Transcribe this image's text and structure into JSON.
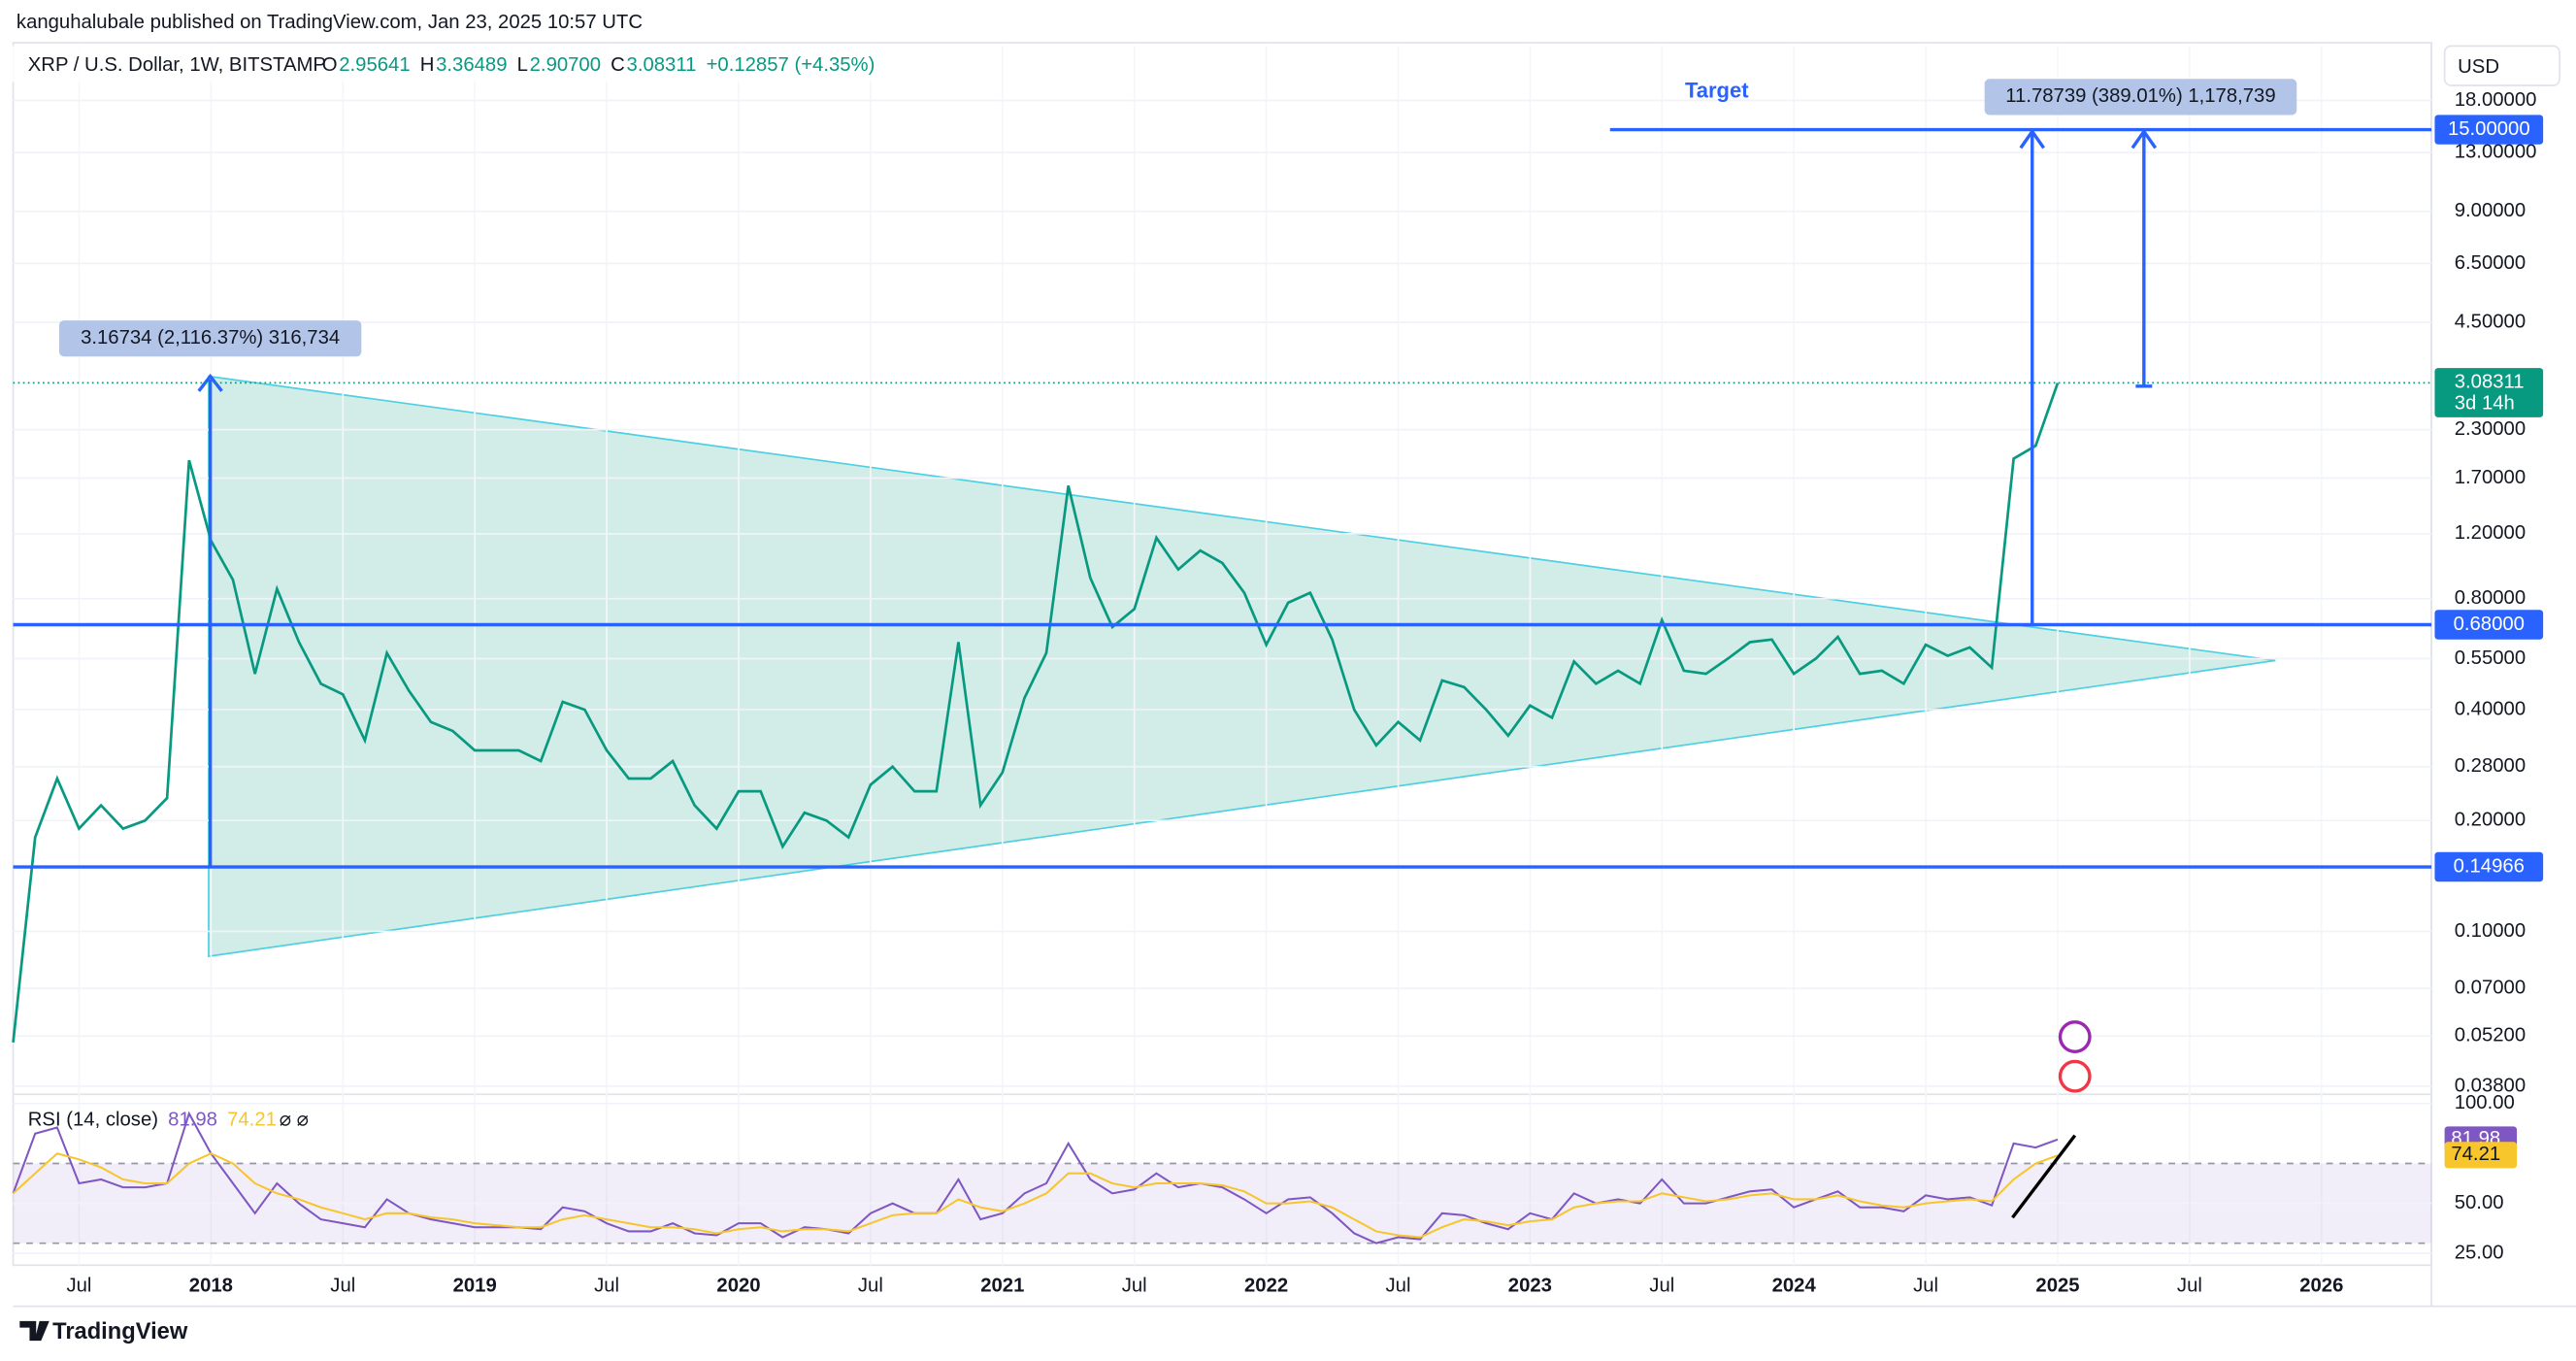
{
  "header": {
    "published": "kanguhalubale published on TradingView.com, Jan 23, 2025 10:57 UTC",
    "ohlc": [
      {
        "key": "O",
        "value": "2.95641"
      },
      {
        "key": "H",
        "value": "3.36489"
      },
      {
        "key": "L",
        "value": "2.90700"
      },
      {
        "key": "C",
        "value": "3.08311"
      }
    ],
    "change": "+0.12857 (+4.35%)",
    "currency": "USD"
  },
  "chart_data": [
    {
      "type": "line",
      "title": "XRP / U.S. Dollar, 1W, BITSTAMP",
      "log_scale": true,
      "x": [
        "2017-04",
        "2017-05",
        "2017-06",
        "2017-07",
        "2017-08",
        "2017-09",
        "2017-10",
        "2017-11",
        "2017-12",
        "2018-01",
        "2018-02",
        "2018-03",
        "2018-04",
        "2018-05",
        "2018-06",
        "2018-07",
        "2018-08",
        "2018-09",
        "2018-10",
        "2018-11",
        "2018-12",
        "2019-01",
        "2019-02",
        "2019-03",
        "2019-04",
        "2019-05",
        "2019-06",
        "2019-07",
        "2019-08",
        "2019-09",
        "2019-10",
        "2019-11",
        "2019-12",
        "2020-01",
        "2020-02",
        "2020-03",
        "2020-04",
        "2020-05",
        "2020-06",
        "2020-07",
        "2020-08",
        "2020-09",
        "2020-10",
        "2020-11",
        "2020-12",
        "2021-01",
        "2021-02",
        "2021-03",
        "2021-04",
        "2021-05",
        "2021-06",
        "2021-07",
        "2021-08",
        "2021-09",
        "2021-10",
        "2021-11",
        "2021-12",
        "2022-01",
        "2022-02",
        "2022-03",
        "2022-04",
        "2022-05",
        "2022-06",
        "2022-07",
        "2022-08",
        "2022-09",
        "2022-10",
        "2022-11",
        "2022-12",
        "2023-01",
        "2023-02",
        "2023-03",
        "2023-04",
        "2023-05",
        "2023-06",
        "2023-07",
        "2023-08",
        "2023-09",
        "2023-10",
        "2023-11",
        "2023-12",
        "2024-01",
        "2024-02",
        "2024-03",
        "2024-04",
        "2024-05",
        "2024-06",
        "2024-07",
        "2024-08",
        "2024-09",
        "2024-10",
        "2024-11",
        "2024-12",
        "2025-01"
      ],
      "series": [
        {
          "color": "#089981",
          "values": [
            0.05,
            0.18,
            0.26,
            0.19,
            0.22,
            0.19,
            0.2,
            0.23,
            1.9,
            1.15,
            0.9,
            0.5,
            0.85,
            0.61,
            0.47,
            0.44,
            0.33,
            0.57,
            0.45,
            0.37,
            0.35,
            0.31,
            0.31,
            0.31,
            0.29,
            0.42,
            0.4,
            0.31,
            0.26,
            0.26,
            0.29,
            0.22,
            0.19,
            0.24,
            0.24,
            0.17,
            0.21,
            0.2,
            0.18,
            0.25,
            0.28,
            0.24,
            0.24,
            0.61,
            0.22,
            0.27,
            0.43,
            0.57,
            1.62,
            0.91,
            0.67,
            0.75,
            1.17,
            0.96,
            1.08,
            1.0,
            0.83,
            0.6,
            0.78,
            0.83,
            0.62,
            0.4,
            0.32,
            0.37,
            0.33,
            0.48,
            0.46,
            0.4,
            0.34,
            0.41,
            0.38,
            0.54,
            0.47,
            0.51,
            0.47,
            0.7,
            0.51,
            0.5,
            0.55,
            0.61,
            0.62,
            0.5,
            0.55,
            0.63,
            0.5,
            0.51,
            0.47,
            0.6,
            0.56,
            0.59,
            0.52,
            1.92,
            2.08,
            3.08
          ]
        }
      ],
      "xlim": [
        "2017-04",
        "2026-06"
      ],
      "xticks": [
        {
          "value": "2017-07",
          "label": "Jul"
        },
        {
          "value": "2018-01",
          "label": "2018"
        },
        {
          "value": "2018-07",
          "label": "Jul"
        },
        {
          "value": "2019-01",
          "label": "2019"
        },
        {
          "value": "2019-07",
          "label": "Jul"
        },
        {
          "value": "2020-01",
          "label": "2020"
        },
        {
          "value": "2020-07",
          "label": "Jul"
        },
        {
          "value": "2021-01",
          "label": "2021"
        },
        {
          "value": "2021-07",
          "label": "Jul"
        },
        {
          "value": "2022-01",
          "label": "2022"
        },
        {
          "value": "2022-07",
          "label": "Jul"
        },
        {
          "value": "2023-01",
          "label": "2023"
        },
        {
          "value": "2023-07",
          "label": "Jul"
        },
        {
          "value": "2024-01",
          "label": "2024"
        },
        {
          "value": "2024-07",
          "label": "Jul"
        },
        {
          "value": "2025-01",
          "label": "2025"
        },
        {
          "value": "2025-07",
          "label": "Jul"
        },
        {
          "value": "2026-01",
          "label": "2026"
        }
      ],
      "ylim": [
        0.0365,
        25.3
      ],
      "yticks": [
        {
          "value": 18,
          "label": "18.00000"
        },
        {
          "value": 13,
          "label": "13.00000"
        },
        {
          "value": 9,
          "label": "9.00000"
        },
        {
          "value": 6.5,
          "label": "6.50000"
        },
        {
          "value": 4.5,
          "label": "4.50000"
        },
        {
          "value": 2.3,
          "label": "2.30000"
        },
        {
          "value": 1.7,
          "label": "1.70000"
        },
        {
          "value": 1.2,
          "label": "1.20000"
        },
        {
          "value": 0.8,
          "label": "0.80000"
        },
        {
          "value": 0.55,
          "label": "0.55000"
        },
        {
          "value": 0.4,
          "label": "0.40000"
        },
        {
          "value": 0.28,
          "label": "0.28000"
        },
        {
          "value": 0.2,
          "label": "0.20000"
        },
        {
          "value": 0.1,
          "label": "0.10000"
        },
        {
          "value": 0.07,
          "label": "0.07000"
        },
        {
          "value": 0.052,
          "label": "0.05200"
        },
        {
          "value": 0.038,
          "label": "0.03800"
        }
      ],
      "levels": [
        {
          "value": 15,
          "label": "15.00000",
          "color": "#2962ff"
        },
        {
          "value": 0.68,
          "label": "0.68000",
          "color": "#2962ff"
        },
        {
          "value": 0.14966,
          "label": "0.14966",
          "color": "#2962ff"
        }
      ],
      "last_price": {
        "value": 3.08311,
        "label": "3.08311",
        "countdown": "3d 14h",
        "color": "#089981"
      },
      "annotations": {
        "target": "Target",
        "measure_2018": "3.16734 (2,116.37%) 316,734",
        "measure_target": "11.78739 (389.01%) 1,178,739"
      }
    },
    {
      "type": "line",
      "title": "RSI (14, close)",
      "series": [
        {
          "color": "#7e57c2",
          "values": [
            55,
            85,
            88,
            60,
            62,
            58,
            58,
            60,
            95,
            75,
            60,
            45,
            60,
            50,
            42,
            40,
            38,
            52,
            45,
            42,
            40,
            38,
            38,
            38,
            37,
            48,
            46,
            40,
            36,
            36,
            40,
            35,
            34,
            40,
            40,
            33,
            38,
            37,
            35,
            45,
            50,
            45,
            45,
            62,
            42,
            45,
            55,
            60,
            80,
            62,
            55,
            57,
            65,
            58,
            60,
            58,
            52,
            45,
            52,
            53,
            45,
            35,
            30,
            33,
            32,
            45,
            44,
            40,
            37,
            45,
            42,
            55,
            50,
            52,
            50,
            62,
            50,
            50,
            53,
            56,
            57,
            48,
            52,
            56,
            48,
            48,
            46,
            54,
            52,
            53,
            49,
            80,
            78,
            82
          ]
        },
        {
          "color": "#f7c52c",
          "values": [
            55,
            65,
            75,
            72,
            68,
            62,
            60,
            60,
            70,
            75,
            70,
            60,
            55,
            52,
            48,
            45,
            42,
            45,
            45,
            43,
            42,
            40,
            39,
            38,
            38,
            42,
            44,
            42,
            40,
            38,
            38,
            37,
            35,
            37,
            38,
            36,
            37,
            37,
            36,
            40,
            44,
            45,
            45,
            52,
            48,
            46,
            50,
            55,
            65,
            65,
            60,
            58,
            60,
            60,
            60,
            59,
            56,
            50,
            50,
            51,
            48,
            42,
            36,
            34,
            33,
            38,
            42,
            41,
            39,
            41,
            42,
            48,
            50,
            51,
            51,
            55,
            53,
            51,
            52,
            54,
            55,
            52,
            52,
            54,
            51,
            49,
            48,
            50,
            51,
            52,
            51,
            62,
            70,
            74
          ]
        }
      ],
      "legend_values": [
        81.98,
        74.21
      ],
      "ylim": [
        19,
        103
      ],
      "yticks": [
        {
          "value": 100,
          "label": "100.00"
        },
        {
          "value": 50,
          "label": "50.00"
        },
        {
          "value": 25,
          "label": "25.00"
        }
      ],
      "bands": [
        30,
        70
      ]
    }
  ],
  "footer": "TradingView"
}
